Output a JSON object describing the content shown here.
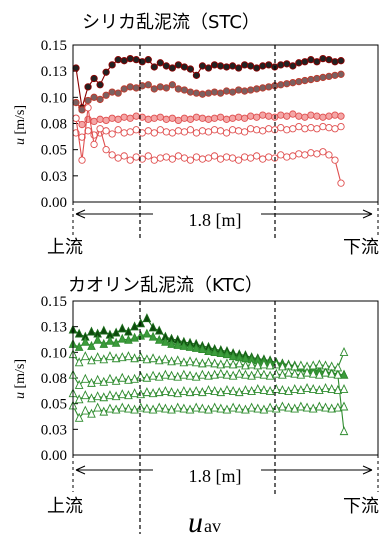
{
  "chart_data": [
    {
      "type": "line",
      "title": "シリカ乱泥流（STC）",
      "ylabel_italic": "u",
      "ylabel_unit": " [m/s]",
      "ylim": [
        0,
        0.15
      ],
      "yticks": [
        "0.00",
        "0.03",
        "0.05",
        "0.08",
        "0.10",
        "0.13",
        "0.15"
      ],
      "ytick_values": [
        0,
        0.025,
        0.05,
        0.075,
        0.1,
        0.125,
        0.15
      ],
      "grid": false,
      "distance_label": "1.8 [m]",
      "upstream_label": "上流",
      "downstream_label": "下流",
      "marker": "circle",
      "series": [
        {
          "color": "#8b0000",
          "fill": "#222222",
          "values": [
            0.128,
            0.09,
            0.11,
            0.118,
            0.112,
            0.124,
            0.131,
            0.136,
            0.135,
            0.137,
            0.136,
            0.134,
            0.136,
            0.129,
            0.133,
            0.13,
            0.128,
            0.131,
            0.129,
            0.127,
            0.121,
            0.13,
            0.128,
            0.131,
            0.13,
            0.129,
            0.13,
            0.128,
            0.131,
            0.13,
            0.128,
            0.13,
            0.131,
            0.129,
            0.131,
            0.132,
            0.13,
            0.133,
            0.134,
            0.136,
            0.134,
            0.137,
            0.136,
            0.134,
            0.135
          ]
        },
        {
          "color": "#c0392b",
          "fill": "#7b6060",
          "values": [
            0.095,
            0.088,
            0.097,
            0.1,
            0.098,
            0.102,
            0.105,
            0.104,
            0.108,
            0.11,
            0.109,
            0.111,
            0.112,
            0.108,
            0.11,
            0.109,
            0.112,
            0.108,
            0.107,
            0.105,
            0.104,
            0.103,
            0.104,
            0.105,
            0.104,
            0.106,
            0.105,
            0.107,
            0.106,
            0.107,
            0.108,
            0.109,
            0.11,
            0.111,
            0.112,
            0.113,
            0.114,
            0.115,
            0.116,
            0.117,
            0.118,
            0.119,
            0.12,
            0.121,
            0.122
          ]
        },
        {
          "color": "#e05050",
          "fill": "#f4a6a6",
          "values": [
            0.08,
            0.074,
            0.079,
            0.077,
            0.079,
            0.078,
            0.08,
            0.079,
            0.081,
            0.08,
            0.082,
            0.081,
            0.079,
            0.08,
            0.081,
            0.079,
            0.08,
            0.078,
            0.08,
            0.079,
            0.081,
            0.08,
            0.079,
            0.08,
            0.081,
            0.079,
            0.08,
            0.081,
            0.08,
            0.082,
            0.081,
            0.083,
            0.082,
            0.081,
            0.083,
            0.082,
            0.084,
            0.082,
            0.081,
            0.083,
            0.082,
            0.081,
            0.082,
            0.083,
            0.082
          ]
        },
        {
          "color": "#e05050",
          "fill": "#ffffff",
          "values": [
            0.066,
            0.062,
            0.068,
            0.064,
            0.066,
            0.068,
            0.065,
            0.069,
            0.066,
            0.067,
            0.069,
            0.066,
            0.068,
            0.066,
            0.069,
            0.067,
            0.066,
            0.068,
            0.067,
            0.069,
            0.066,
            0.068,
            0.067,
            0.069,
            0.068,
            0.066,
            0.069,
            0.068,
            0.067,
            0.07,
            0.069,
            0.068,
            0.07,
            0.069,
            0.071,
            0.069,
            0.07,
            0.072,
            0.07,
            0.071,
            0.07,
            0.072,
            0.071,
            0.07,
            0.072
          ]
        },
        {
          "color": "#e05050",
          "fill": "#ffffff",
          "values": [
            0.08,
            0.04,
            0.09,
            0.055,
            0.07,
            0.05,
            0.045,
            0.042,
            0.044,
            0.04,
            0.043,
            0.041,
            0.044,
            0.04,
            0.042,
            0.043,
            0.041,
            0.044,
            0.042,
            0.04,
            0.043,
            0.041,
            0.042,
            0.044,
            0.041,
            0.043,
            0.042,
            0.04,
            0.043,
            0.042,
            0.044,
            0.041,
            0.043,
            0.042,
            0.045,
            0.043,
            0.044,
            0.046,
            0.045,
            0.047,
            0.046,
            0.048,
            0.045,
            0.04,
            0.018
          ]
        }
      ]
    },
    {
      "type": "line",
      "title": "カオリン乱泥流（KTC）",
      "ylabel_italic": "u",
      "ylabel_unit": " [m/s]",
      "ylim": [
        0,
        0.15
      ],
      "yticks": [
        "0.00",
        "0.03",
        "0.05",
        "0.08",
        "0.10",
        "0.13",
        "0.15"
      ],
      "ytick_values": [
        0,
        0.025,
        0.05,
        0.075,
        0.1,
        0.125,
        0.15
      ],
      "grid": false,
      "distance_label": "1.8 [m]",
      "upstream_label": "上流",
      "downstream_label": "下流",
      "x_annotation_italic": "u",
      "x_annotation_sub": "av",
      "marker": "triangle",
      "series": [
        {
          "color": "#1a6b1a",
          "fill": "#0d4a0d",
          "values": [
            0.122,
            0.118,
            0.115,
            0.12,
            0.118,
            0.121,
            0.117,
            0.119,
            0.123,
            0.12,
            0.125,
            0.128,
            0.133,
            0.124,
            0.121,
            0.115,
            0.113,
            0.112,
            0.11,
            0.109,
            0.108,
            0.106,
            0.105,
            0.103,
            0.102,
            0.101,
            0.099,
            0.098,
            0.097,
            0.095,
            0.094,
            0.093,
            0.092,
            0.09,
            0.089,
            0.088,
            0.087,
            0.085,
            0.084,
            0.083,
            0.082,
            0.081,
            0.08,
            0.079,
            0.078
          ]
        },
        {
          "color": "#2e8b2e",
          "fill": "#3c9c3c",
          "values": [
            0.108,
            0.105,
            0.11,
            0.106,
            0.112,
            0.108,
            0.111,
            0.109,
            0.113,
            0.112,
            0.114,
            0.116,
            0.118,
            0.115,
            0.112,
            0.11,
            0.108,
            0.107,
            0.106,
            0.105,
            0.104,
            0.103,
            0.101,
            0.1,
            0.099,
            0.098,
            0.096,
            0.095,
            0.094,
            0.093,
            0.092,
            0.091,
            0.09,
            0.089,
            0.088,
            0.087,
            0.086,
            0.085,
            0.084,
            0.083,
            0.082,
            0.081,
            0.08,
            0.079,
            0.078
          ]
        },
        {
          "color": "#2e8b2e",
          "fill": "#ffffff",
          "values": [
            0.098,
            0.09,
            0.096,
            0.092,
            0.095,
            0.093,
            0.096,
            0.094,
            0.095,
            0.096,
            0.094,
            0.095,
            0.093,
            0.094,
            0.092,
            0.093,
            0.091,
            0.092,
            0.09,
            0.091,
            0.09,
            0.089,
            0.09,
            0.089,
            0.088,
            0.089,
            0.088,
            0.089,
            0.087,
            0.088,
            0.087,
            0.088,
            0.087,
            0.088,
            0.086,
            0.087,
            0.086,
            0.087,
            0.086,
            0.087,
            0.088,
            0.087,
            0.086,
            0.085,
            0.1
          ]
        },
        {
          "color": "#2e8b2e",
          "fill": "#ffffff",
          "values": [
            0.078,
            0.068,
            0.074,
            0.07,
            0.073,
            0.071,
            0.074,
            0.072,
            0.075,
            0.073,
            0.074,
            0.076,
            0.075,
            0.077,
            0.076,
            0.078,
            0.077,
            0.076,
            0.078,
            0.077,
            0.076,
            0.078,
            0.077,
            0.078,
            0.079,
            0.078,
            0.077,
            0.079,
            0.078,
            0.077,
            0.079,
            0.078,
            0.077,
            0.079,
            0.078,
            0.08,
            0.079,
            0.078,
            0.08,
            0.079,
            0.078,
            0.08,
            0.079,
            0.078,
            0.023
          ]
        },
        {
          "color": "#2e8b2e",
          "fill": "#ffffff",
          "values": [
            0.06,
            0.054,
            0.058,
            0.055,
            0.057,
            0.056,
            0.058,
            0.057,
            0.059,
            0.058,
            0.06,
            0.059,
            0.061,
            0.06,
            0.061,
            0.062,
            0.061,
            0.06,
            0.062,
            0.061,
            0.062,
            0.061,
            0.063,
            0.062,
            0.061,
            0.063,
            0.062,
            0.061,
            0.063,
            0.062,
            0.064,
            0.063,
            0.062,
            0.064,
            0.063,
            0.062,
            0.064,
            0.063,
            0.065,
            0.064,
            0.063,
            0.065,
            0.064,
            0.063,
            0.064
          ]
        },
        {
          "color": "#2e8b2e",
          "fill": "#ffffff",
          "values": [
            0.048,
            0.036,
            0.043,
            0.04,
            0.046,
            0.042,
            0.045,
            0.044,
            0.046,
            0.045,
            0.044,
            0.046,
            0.045,
            0.044,
            0.046,
            0.045,
            0.044,
            0.046,
            0.045,
            0.044,
            0.046,
            0.045,
            0.044,
            0.046,
            0.045,
            0.044,
            0.046,
            0.045,
            0.044,
            0.046,
            0.045,
            0.044,
            0.046,
            0.045,
            0.047,
            0.046,
            0.045,
            0.047,
            0.046,
            0.045,
            0.047,
            0.046,
            0.045,
            0.046,
            0.047
          ]
        }
      ]
    }
  ]
}
